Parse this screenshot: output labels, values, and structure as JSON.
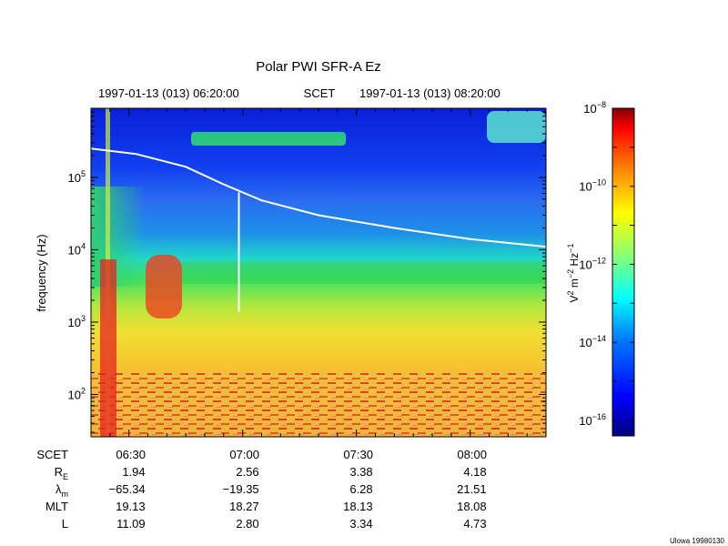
{
  "chart_data": {
    "type": "heatmap",
    "title": "Polar PWI SFR-A Ez",
    "time_range": {
      "start": "1997-01-13 (013) 06:20:00",
      "mid": "SCET",
      "end": "1997-01-13 (013) 08:20:00"
    },
    "x_range_minutes": [
      380,
      500
    ],
    "x_ticks": [
      {
        "minute": 390,
        "label": "06:30"
      },
      {
        "minute": 420,
        "label": "07:00"
      },
      {
        "minute": 450,
        "label": "07:30"
      },
      {
        "minute": 480,
        "label": "08:00"
      }
    ],
    "ylabel": "frequency (Hz)",
    "ylim": [
      26,
      900000
    ],
    "y_scale": "log",
    "y_ticks": [
      {
        "base": "10",
        "exp": "2",
        "value": 100
      },
      {
        "base": "10",
        "exp": "3",
        "value": 1000
      },
      {
        "base": "10",
        "exp": "4",
        "value": 10000
      },
      {
        "base": "10",
        "exp": "5",
        "value": 100000
      }
    ],
    "colorbar": {
      "label_main": "V",
      "label_sup1": "2",
      "label_mid": " m",
      "label_sup2": "−2",
      "label_tail": " Hz",
      "label_sup3": "−1",
      "scale": "log",
      "range_exp": [
        -16.4,
        -8
      ],
      "ticks": [
        {
          "base": "10",
          "exp": "−8",
          "value": -8
        },
        {
          "base": "10",
          "exp": "−10",
          "value": -10
        },
        {
          "base": "10",
          "exp": "−12",
          "value": -12
        },
        {
          "base": "10",
          "exp": "−14",
          "value": -14
        },
        {
          "base": "10",
          "exp": "−16",
          "value": -16
        }
      ],
      "colors": [
        "#00007f",
        "#0000ff",
        "#007fff",
        "#00ffff",
        "#7fff7f",
        "#ffff00",
        "#ff7f00",
        "#ff0000",
        "#7f0000"
      ]
    },
    "curve_series": {
      "points": [
        {
          "minute": 380,
          "freq": 250000
        },
        {
          "minute": 392,
          "freq": 210000
        },
        {
          "minute": 405,
          "freq": 140000
        },
        {
          "minute": 415,
          "freq": 80000
        },
        {
          "minute": 425,
          "freq": 48000
        },
        {
          "minute": 440,
          "freq": 30000
        },
        {
          "minute": 460,
          "freq": 20000
        },
        {
          "minute": 480,
          "freq": 14000
        },
        {
          "minute": 500,
          "freq": 11000
        }
      ]
    },
    "marker_line": {
      "minute": 419,
      "freq_top": 62000,
      "freq_bottom": 1400
    },
    "ephemeris": {
      "columns": [
        "06:30",
        "07:00",
        "07:30",
        "08:00"
      ],
      "rows": [
        {
          "label": "R",
          "sub": "E",
          "values": [
            "1.94",
            "2.56",
            "3.38",
            "4.18"
          ]
        },
        {
          "label": "λ",
          "sub": "m",
          "values": [
            "−65.34",
            "−19.35",
            "6.28",
            "21.51"
          ]
        },
        {
          "label": "MLT",
          "sub": "",
          "values": [
            "19.13",
            "18.27",
            "18.13",
            "18.08"
          ]
        },
        {
          "label": "L",
          "sub": "",
          "values": [
            "11.09",
            "2.80",
            "3.34",
            "4.73"
          ]
        }
      ],
      "scet_label": "SCET"
    }
  },
  "footer": {
    "credit": "Ulowa 19980130"
  }
}
